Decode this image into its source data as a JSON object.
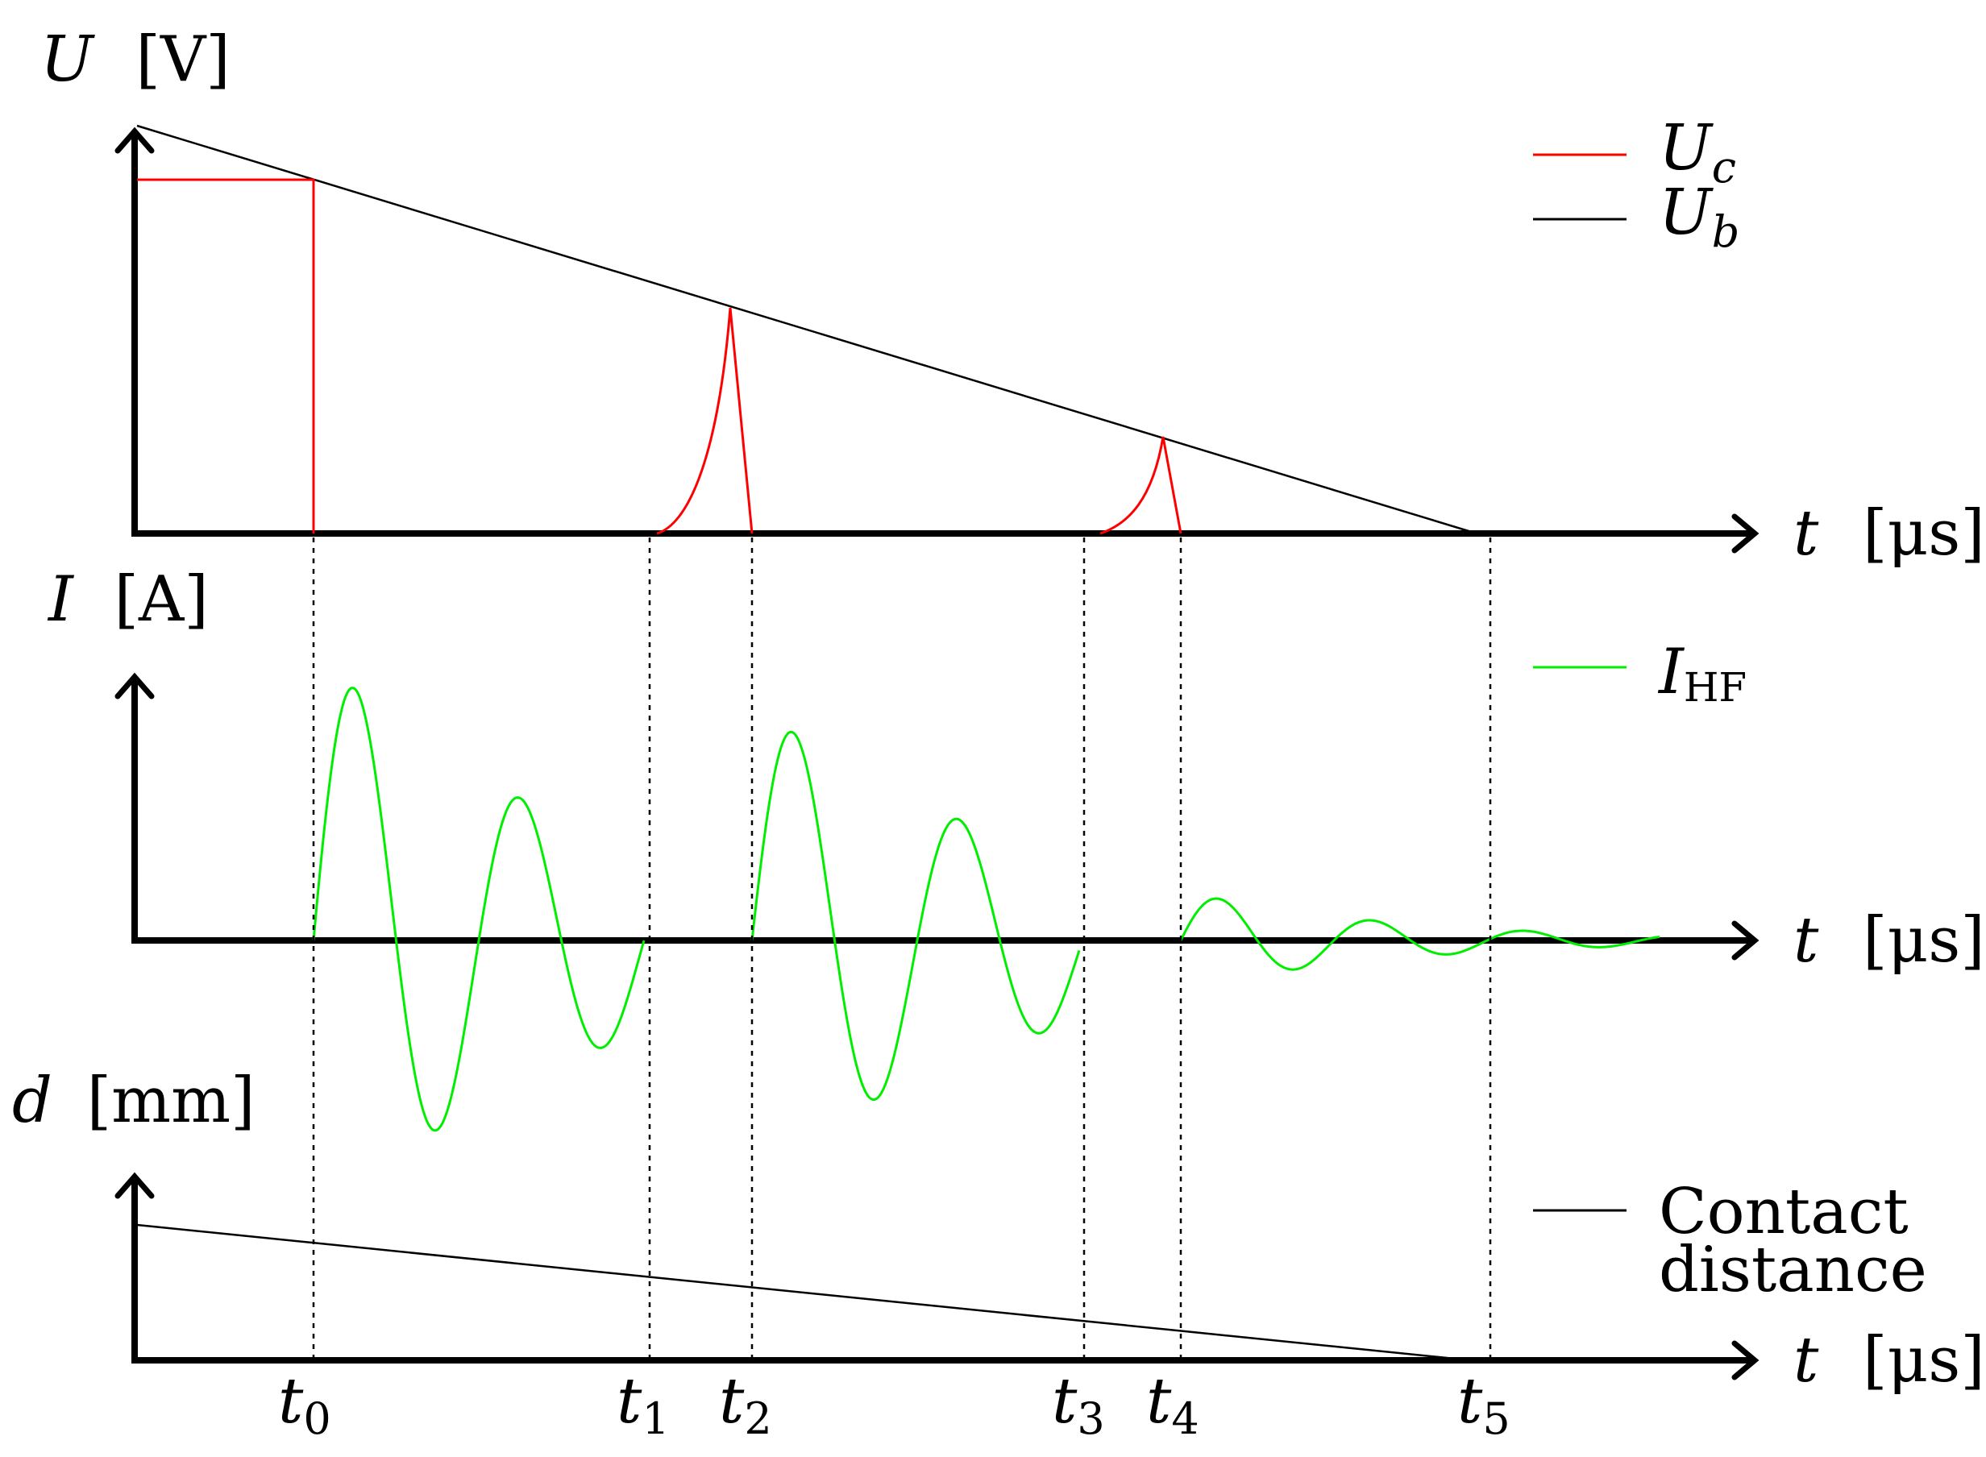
{
  "panels": {
    "voltage": {
      "ylabel_sym": "U",
      "ylabel_unit": "[V]",
      "xlabel_sym": "t",
      "xlabel_unit": "[μs]",
      "legend": [
        {
          "sym": "U",
          "sub": "c",
          "color": "#ff0000"
        },
        {
          "sym": "U",
          "sub": "b",
          "color": "#000000"
        }
      ]
    },
    "current": {
      "ylabel_sym": "I",
      "ylabel_unit": "[A]",
      "xlabel_sym": "t",
      "xlabel_unit": "[μs]",
      "legend": [
        {
          "sym": "I",
          "sub": "HF",
          "color": "#00ee00"
        }
      ]
    },
    "distance": {
      "ylabel_sym": "d",
      "ylabel_unit": "[mm]",
      "xlabel_sym": "t",
      "xlabel_unit": "[μs]",
      "legend": [
        {
          "line1": "Contact",
          "line2": "distance",
          "color": "#000000"
        }
      ]
    }
  },
  "time_markers": [
    {
      "sym": "t",
      "sub": "0"
    },
    {
      "sym": "t",
      "sub": "1"
    },
    {
      "sym": "t",
      "sub": "2"
    },
    {
      "sym": "t",
      "sub": "3"
    },
    {
      "sym": "t",
      "sub": "4"
    },
    {
      "sym": "t",
      "sub": "5"
    }
  ],
  "colors": {
    "axis": "#000000",
    "uc": "#ff0000",
    "ub": "#000000",
    "ihf": "#00ee00",
    "contact_distance": "#000000",
    "marker_line": "#000000"
  }
}
